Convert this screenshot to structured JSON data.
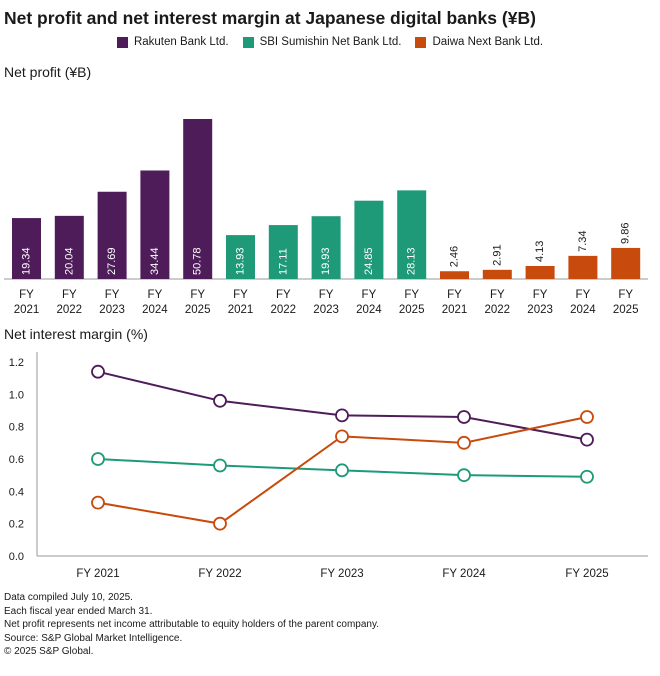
{
  "title": "Net profit and net interest margin at Japanese digital banks (¥B)",
  "colors": {
    "rakuten": "#4f1c5a",
    "sbi": "#1e9a78",
    "daiwa": "#c84a0c"
  },
  "legend": [
    {
      "label": "Rakuten Bank Ltd.",
      "color": "#4f1c5a"
    },
    {
      "label": "SBI Sumishin Net Bank Ltd.",
      "color": "#1e9a78"
    },
    {
      "label": "Daiwa Next Bank Ltd.",
      "color": "#c84a0c"
    }
  ],
  "bar_section_label": "Net profit (¥B)",
  "line_section_label": "Net interest margin (%)",
  "chart_data": [
    {
      "type": "bar",
      "title": "Net profit (¥B)",
      "categories": [
        "FY 2021",
        "FY 2022",
        "FY 2023",
        "FY 2024",
        "FY 2025"
      ],
      "series": [
        {
          "name": "Rakuten Bank Ltd.",
          "values": [
            19.34,
            20.04,
            27.69,
            34.44,
            50.78
          ]
        },
        {
          "name": "SBI Sumishin Net Bank Ltd.",
          "values": [
            13.93,
            17.11,
            19.93,
            24.85,
            28.13
          ]
        },
        {
          "name": "Daiwa Next Bank Ltd.",
          "values": [
            2.46,
            2.91,
            4.13,
            7.34,
            9.86
          ]
        }
      ],
      "value_labels": [
        [
          "19.34",
          "20.04",
          "27.69",
          "34.44",
          "50.78"
        ],
        [
          "13.93",
          "17.11",
          "19.93",
          "24.85",
          "28.13"
        ],
        [
          "2.46",
          "2.91",
          "4.13",
          "7.34",
          "9.86"
        ]
      ],
      "ylim": [
        0,
        50.78
      ]
    },
    {
      "type": "line",
      "title": "Net interest margin (%)",
      "categories": [
        "FY 2021",
        "FY 2022",
        "FY 2023",
        "FY 2024",
        "FY 2025"
      ],
      "yticks": [
        "0.0",
        "0.2",
        "0.4",
        "0.6",
        "0.8",
        "1.0",
        "1.2"
      ],
      "ylim": [
        0,
        1.2
      ],
      "series": [
        {
          "name": "Rakuten Bank Ltd.",
          "values": [
            1.14,
            0.96,
            0.87,
            0.86,
            0.72
          ]
        },
        {
          "name": "SBI Sumishin Net Bank Ltd.",
          "values": [
            0.6,
            0.56,
            0.53,
            0.5,
            0.49
          ]
        },
        {
          "name": "Daiwa Next Bank Ltd.",
          "values": [
            0.33,
            0.2,
            0.74,
            0.7,
            0.86
          ]
        }
      ]
    }
  ],
  "footnotes": [
    "Data compiled July 10, 2025.",
    "Each fiscal year ended March 31.",
    "Net profit represents net income attributable to equity holders of the parent company.",
    "Source: S&P Global Market Intelligence.",
    "© 2025 S&P Global."
  ]
}
